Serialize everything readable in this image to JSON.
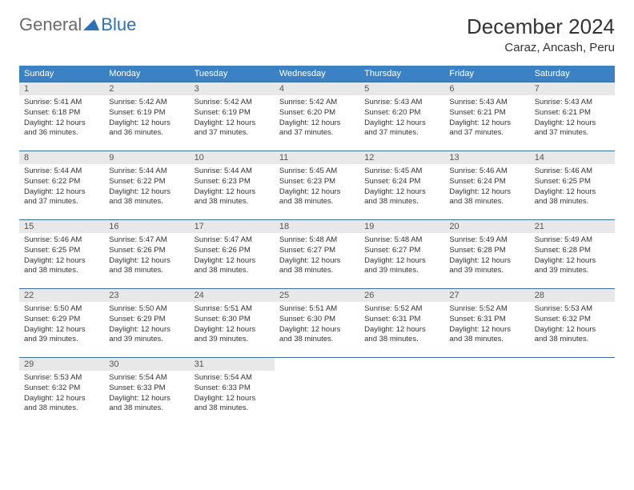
{
  "logo": {
    "text1": "General",
    "text2": "Blue"
  },
  "title": "December 2024",
  "location": "Caraz, Ancash, Peru",
  "colors": {
    "header_bg": "#3b82c4",
    "header_text": "#ffffff",
    "daynum_bg": "#e8e8e8",
    "border": "#3b6fa0",
    "logo_gray": "#6a6a6a",
    "logo_blue": "#2c71b8"
  },
  "weekdays": [
    "Sunday",
    "Monday",
    "Tuesday",
    "Wednesday",
    "Thursday",
    "Friday",
    "Saturday"
  ],
  "days": [
    {
      "n": "1",
      "sr": "5:41 AM",
      "ss": "6:18 PM",
      "dl": "12 hours and 36 minutes."
    },
    {
      "n": "2",
      "sr": "5:42 AM",
      "ss": "6:19 PM",
      "dl": "12 hours and 36 minutes."
    },
    {
      "n": "3",
      "sr": "5:42 AM",
      "ss": "6:19 PM",
      "dl": "12 hours and 37 minutes."
    },
    {
      "n": "4",
      "sr": "5:42 AM",
      "ss": "6:20 PM",
      "dl": "12 hours and 37 minutes."
    },
    {
      "n": "5",
      "sr": "5:43 AM",
      "ss": "6:20 PM",
      "dl": "12 hours and 37 minutes."
    },
    {
      "n": "6",
      "sr": "5:43 AM",
      "ss": "6:21 PM",
      "dl": "12 hours and 37 minutes."
    },
    {
      "n": "7",
      "sr": "5:43 AM",
      "ss": "6:21 PM",
      "dl": "12 hours and 37 minutes."
    },
    {
      "n": "8",
      "sr": "5:44 AM",
      "ss": "6:22 PM",
      "dl": "12 hours and 37 minutes."
    },
    {
      "n": "9",
      "sr": "5:44 AM",
      "ss": "6:22 PM",
      "dl": "12 hours and 38 minutes."
    },
    {
      "n": "10",
      "sr": "5:44 AM",
      "ss": "6:23 PM",
      "dl": "12 hours and 38 minutes."
    },
    {
      "n": "11",
      "sr": "5:45 AM",
      "ss": "6:23 PM",
      "dl": "12 hours and 38 minutes."
    },
    {
      "n": "12",
      "sr": "5:45 AM",
      "ss": "6:24 PM",
      "dl": "12 hours and 38 minutes."
    },
    {
      "n": "13",
      "sr": "5:46 AM",
      "ss": "6:24 PM",
      "dl": "12 hours and 38 minutes."
    },
    {
      "n": "14",
      "sr": "5:46 AM",
      "ss": "6:25 PM",
      "dl": "12 hours and 38 minutes."
    },
    {
      "n": "15",
      "sr": "5:46 AM",
      "ss": "6:25 PM",
      "dl": "12 hours and 38 minutes."
    },
    {
      "n": "16",
      "sr": "5:47 AM",
      "ss": "6:26 PM",
      "dl": "12 hours and 38 minutes."
    },
    {
      "n": "17",
      "sr": "5:47 AM",
      "ss": "6:26 PM",
      "dl": "12 hours and 38 minutes."
    },
    {
      "n": "18",
      "sr": "5:48 AM",
      "ss": "6:27 PM",
      "dl": "12 hours and 38 minutes."
    },
    {
      "n": "19",
      "sr": "5:48 AM",
      "ss": "6:27 PM",
      "dl": "12 hours and 39 minutes."
    },
    {
      "n": "20",
      "sr": "5:49 AM",
      "ss": "6:28 PM",
      "dl": "12 hours and 39 minutes."
    },
    {
      "n": "21",
      "sr": "5:49 AM",
      "ss": "6:28 PM",
      "dl": "12 hours and 39 minutes."
    },
    {
      "n": "22",
      "sr": "5:50 AM",
      "ss": "6:29 PM",
      "dl": "12 hours and 39 minutes."
    },
    {
      "n": "23",
      "sr": "5:50 AM",
      "ss": "6:29 PM",
      "dl": "12 hours and 39 minutes."
    },
    {
      "n": "24",
      "sr": "5:51 AM",
      "ss": "6:30 PM",
      "dl": "12 hours and 39 minutes."
    },
    {
      "n": "25",
      "sr": "5:51 AM",
      "ss": "6:30 PM",
      "dl": "12 hours and 38 minutes."
    },
    {
      "n": "26",
      "sr": "5:52 AM",
      "ss": "6:31 PM",
      "dl": "12 hours and 38 minutes."
    },
    {
      "n": "27",
      "sr": "5:52 AM",
      "ss": "6:31 PM",
      "dl": "12 hours and 38 minutes."
    },
    {
      "n": "28",
      "sr": "5:53 AM",
      "ss": "6:32 PM",
      "dl": "12 hours and 38 minutes."
    },
    {
      "n": "29",
      "sr": "5:53 AM",
      "ss": "6:32 PM",
      "dl": "12 hours and 38 minutes."
    },
    {
      "n": "30",
      "sr": "5:54 AM",
      "ss": "6:33 PM",
      "dl": "12 hours and 38 minutes."
    },
    {
      "n": "31",
      "sr": "5:54 AM",
      "ss": "6:33 PM",
      "dl": "12 hours and 38 minutes."
    }
  ],
  "labels": {
    "sunrise": "Sunrise:",
    "sunset": "Sunset:",
    "daylight": "Daylight:"
  }
}
